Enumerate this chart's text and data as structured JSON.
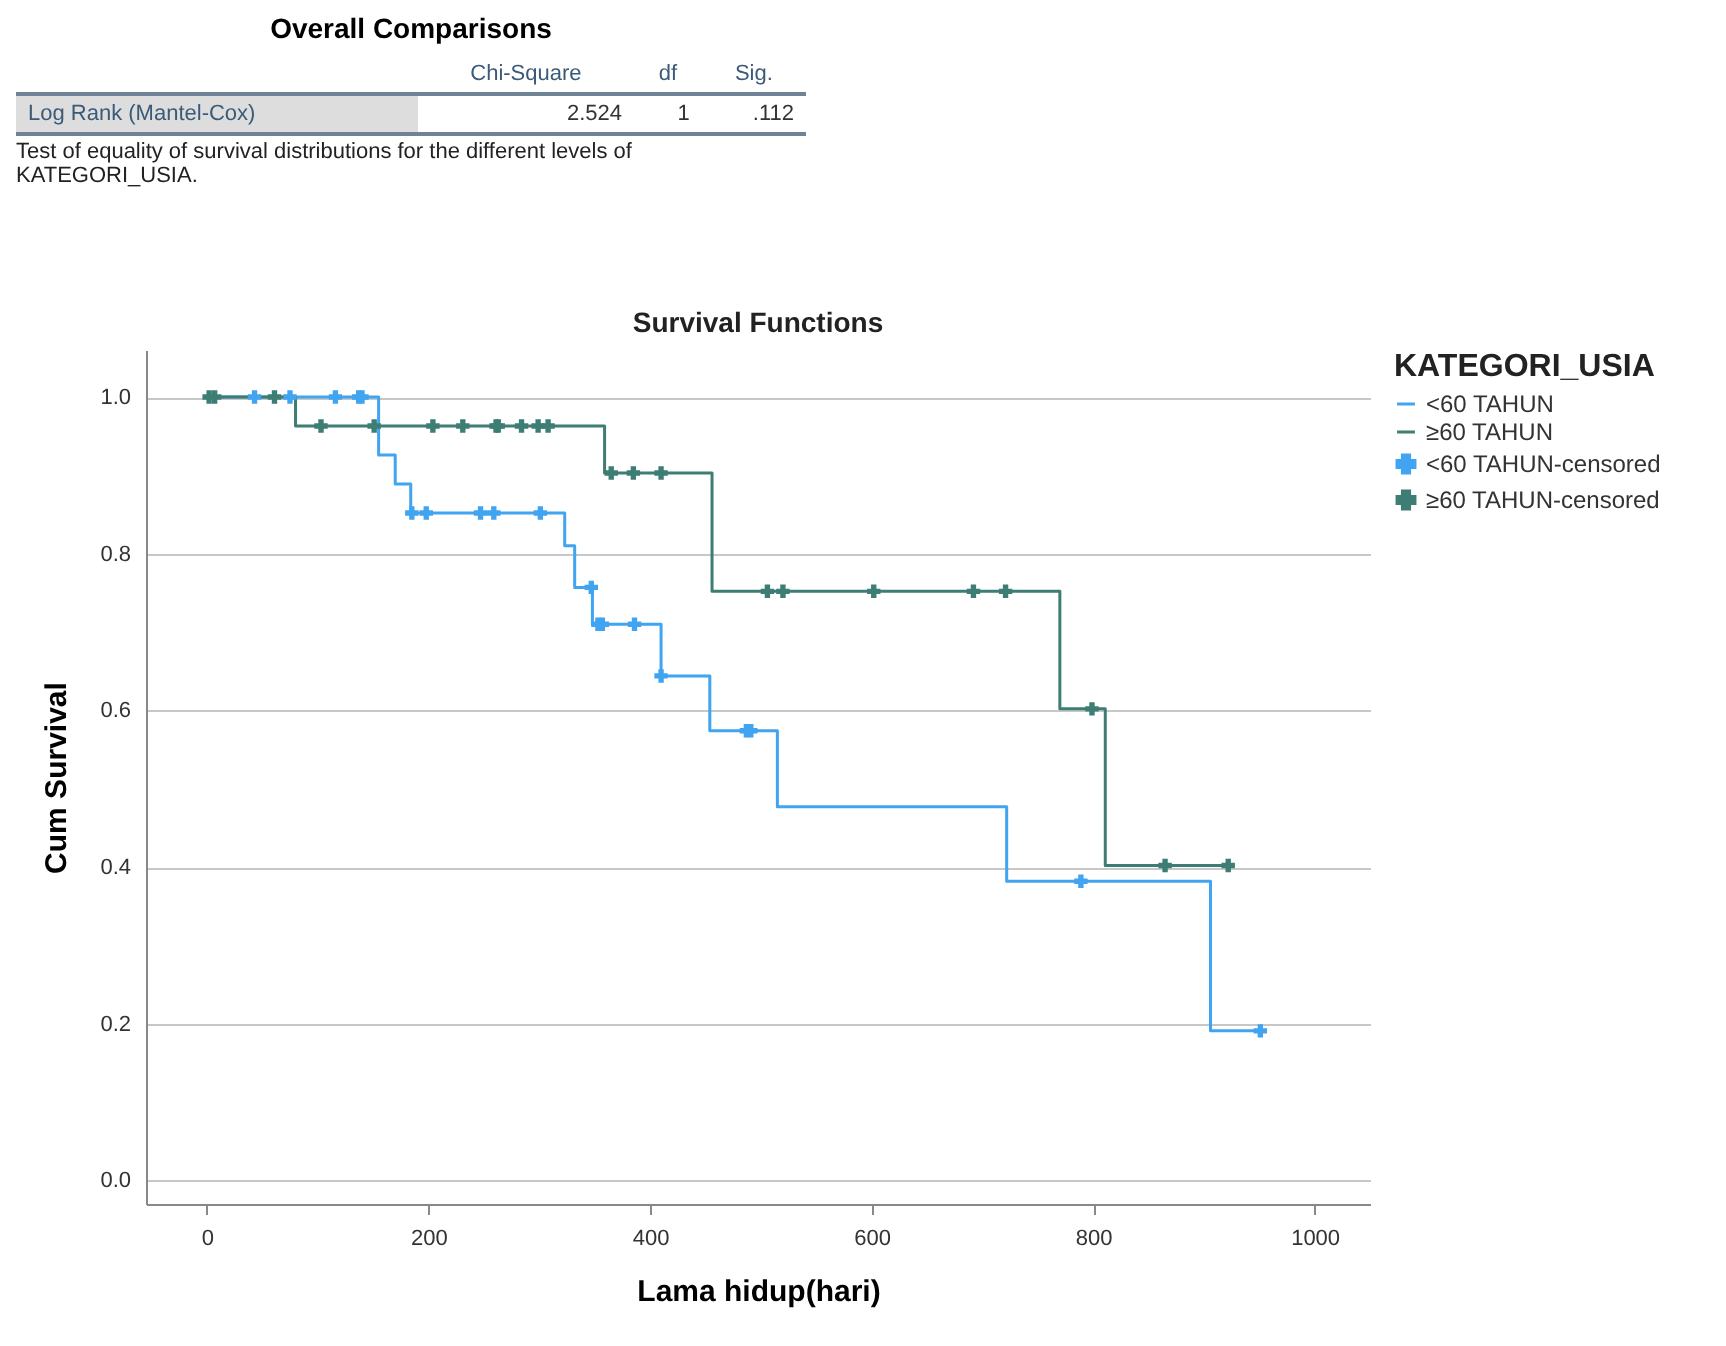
{
  "chart_data": {
    "type": "step",
    "title": "Survival Functions",
    "xlabel": "Lama hidup(hari)",
    "ylabel": "Cum Survival",
    "legend_title": "KATEGORI_USIA",
    "legend": "right",
    "grid": "y",
    "xlim": [
      -55,
      1050
    ],
    "xticks": [
      0,
      200,
      400,
      600,
      800,
      1000
    ],
    "ylim": [
      -0.03,
      1.06
    ],
    "yticks": [
      {
        "value": 0,
        "label": "0.0"
      },
      {
        "value": 0.2,
        "label": "0.2"
      },
      {
        "value": 0.4,
        "label": "0.4"
      },
      {
        "value": 0.6,
        "label": "0.6"
      },
      {
        "value": 0.8,
        "label": "0.8"
      },
      {
        "value": 1,
        "label": "1.0"
      }
    ],
    "annotations": [
      "Overall Comparisons",
      "Chi-Square",
      "df",
      "Sig.",
      "Log Rank (Mantel-Cox)",
      "2.524",
      "1",
      ".112",
      "Test of equality of survival distributions for the different levels of KATEGORI_USIA."
    ],
    "series": [
      {
        "name": "<60 TAHUN",
        "type": "step",
        "color": "#40a4f0",
        "x": [
          0,
          155,
          155,
          170,
          170,
          184,
          184,
          323,
          323,
          332,
          332,
          348,
          348,
          410,
          410,
          454,
          454,
          515,
          515,
          722,
          722,
          906,
          906,
          951
        ],
        "values": [
          1,
          1,
          0.926,
          0.926,
          0.889,
          0.889,
          0.852,
          0.852,
          0.81,
          0.81,
          0.757,
          0.757,
          0.71,
          0.71,
          0.644,
          0.644,
          0.574,
          0.574,
          0.477,
          0.477,
          0.382,
          0.382,
          0.191,
          0.191
        ]
      },
      {
        "name": "≥60 TAHUN",
        "type": "step",
        "color": "#3d7d74",
        "x": [
          0,
          80,
          80,
          359,
          359,
          456,
          456,
          770,
          770,
          811,
          811,
          922
        ],
        "values": [
          1,
          1,
          0.963,
          0.963,
          0.903,
          0.903,
          0.752,
          0.752,
          0.602,
          0.602,
          0.402,
          0.402
        ]
      },
      {
        "name": "<60 TAHUN-censored",
        "type": "scatter",
        "marker": "cross",
        "color": "#40a4f0",
        "x": [
          43,
          75,
          116,
          137,
          140,
          185,
          198,
          247,
          259,
          301,
          347,
          353,
          357,
          386,
          410,
          487,
          491,
          789,
          951
        ],
        "values": [
          1,
          1,
          1,
          1,
          1,
          0.852,
          0.852,
          0.852,
          0.852,
          0.852,
          0.757,
          0.71,
          0.71,
          0.71,
          0.644,
          0.574,
          0.574,
          0.382,
          0.191
        ]
      },
      {
        "name": "≥60 TAHUN-censored",
        "type": "scatter",
        "marker": "cross",
        "color": "#3d7d74",
        "x": [
          2,
          7,
          61,
          103,
          151,
          204,
          231,
          261,
          263,
          284,
          299,
          308,
          365,
          385,
          410,
          506,
          520,
          602,
          692,
          721,
          799,
          865,
          922
        ],
        "values": [
          1,
          1,
          1,
          0.963,
          0.963,
          0.963,
          0.963,
          0.963,
          0.963,
          0.963,
          0.963,
          0.963,
          0.903,
          0.903,
          0.903,
          0.752,
          0.752,
          0.752,
          0.752,
          0.752,
          0.602,
          0.402,
          0.402
        ]
      }
    ]
  }
}
